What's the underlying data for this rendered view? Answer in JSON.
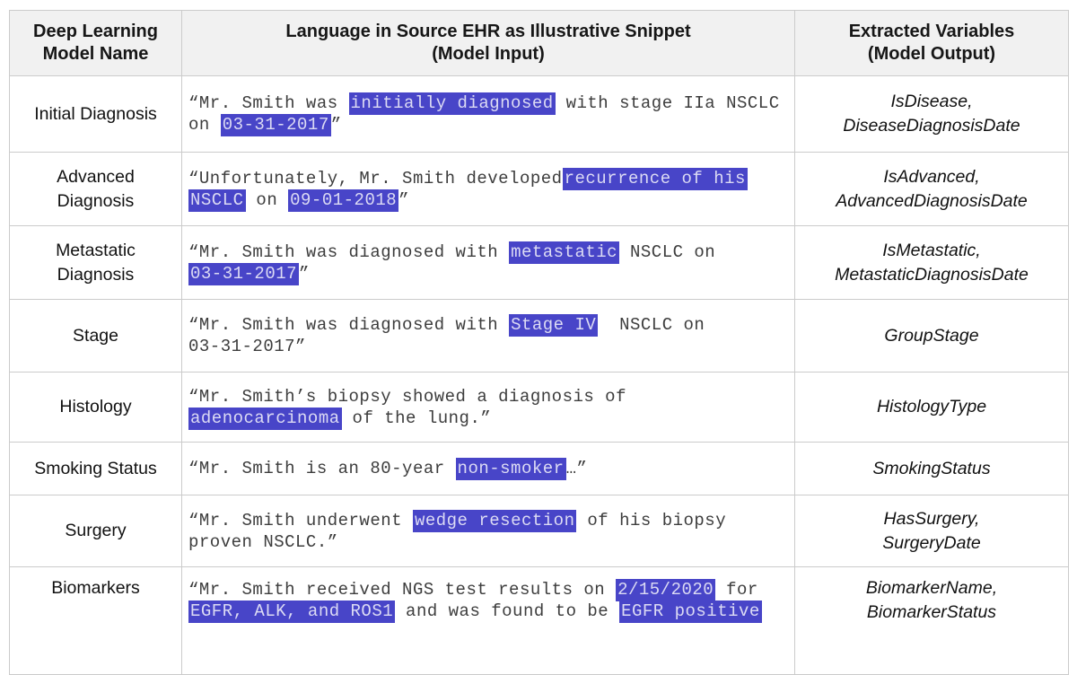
{
  "table": {
    "headers": {
      "col1": "Deep Learning\nModel Name",
      "col2": "Language in Source EHR as Illustrative Snippet\n(Model Input)",
      "col3": "Extracted Variables\n(Model Output)"
    },
    "rows": [
      {
        "model": "Initial Diagnosis",
        "snippet_lines": [
          [
            {
              "t": "“Mr. Smith was ",
              "h": false
            },
            {
              "t": "initially diagnosed",
              "h": true
            },
            {
              "t": " with stage IIa NSCLC",
              "h": false
            }
          ],
          [
            {
              "t": "on ",
              "h": false
            },
            {
              "t": "03-31-2017",
              "h": true
            },
            {
              "t": "”",
              "h": false
            }
          ]
        ],
        "variables": "IsDisease,\nDiseaseDiagnosisDate"
      },
      {
        "model": "Advanced\nDiagnosis",
        "snippet_lines": [
          [
            {
              "t": "“Unfortunately, Mr. Smith developed",
              "h": false
            },
            {
              "t": "recurrence of his",
              "h": true
            }
          ],
          [
            {
              "t": "NSCLC",
              "h": true
            },
            {
              "t": " on ",
              "h": false
            },
            {
              "t": "09-01-2018",
              "h": true
            },
            {
              "t": "”",
              "h": false
            }
          ]
        ],
        "variables": "IsAdvanced,\nAdvancedDiagnosisDate"
      },
      {
        "model": "Metastatic\nDiagnosis",
        "snippet_lines": [
          [
            {
              "t": "“Mr. Smith was diagnosed with ",
              "h": false
            },
            {
              "t": "metastatic",
              "h": true
            },
            {
              "t": " NSCLC on",
              "h": false
            }
          ],
          [
            {
              "t": "03-31-2017",
              "h": true
            },
            {
              "t": "”",
              "h": false
            }
          ]
        ],
        "variables": "IsMetastatic,\nMetastaticDiagnosisDate"
      },
      {
        "model": "Stage",
        "snippet_lines": [
          [
            {
              "t": "“Mr. Smith was diagnosed with ",
              "h": false
            },
            {
              "t": "Stage IV",
              "h": true
            },
            {
              "t": "  NSCLC on",
              "h": false
            }
          ],
          [
            {
              "t": "03-31-2017”",
              "h": false
            }
          ]
        ],
        "variables": "GroupStage"
      },
      {
        "model": "Histology",
        "snippet_lines": [
          [
            {
              "t": "“Mr. Smith’s biopsy showed a diagnosis of",
              "h": false
            }
          ],
          [
            {
              "t": "adenocarcinoma",
              "h": true
            },
            {
              "t": " of the lung.”",
              "h": false
            }
          ]
        ],
        "variables": "HistologyType"
      },
      {
        "model": "Smoking Status",
        "snippet_lines": [
          [
            {
              "t": "“Mr. Smith is an 80-year ",
              "h": false
            },
            {
              "t": "non-smoker",
              "h": true
            },
            {
              "t": "…”",
              "h": false
            }
          ]
        ],
        "variables": "SmokingStatus"
      },
      {
        "model": "Surgery",
        "snippet_lines": [
          [
            {
              "t": "“Mr. Smith underwent ",
              "h": false
            },
            {
              "t": "wedge resection",
              "h": true
            },
            {
              "t": " of his biopsy",
              "h": false
            }
          ],
          [
            {
              "t": "proven NSCLC.”",
              "h": false
            }
          ]
        ],
        "variables": "HasSurgery,\nSurgeryDate"
      },
      {
        "model": "Biomarkers",
        "snippet_lines": [
          [
            {
              "t": "“Mr. Smith received NGS test results on ",
              "h": false
            },
            {
              "t": "2/15/2020",
              "h": true
            },
            {
              "t": " for",
              "h": false
            }
          ],
          [
            {
              "t": "EGFR, ALK, and ROS1",
              "h": true
            },
            {
              "t": " and was found to be ",
              "h": false
            },
            {
              "t": "EGFR positive",
              "h": true
            }
          ]
        ],
        "variables": "BiomarkerName,\nBiomarkerStatus"
      }
    ]
  },
  "colors": {
    "highlight_bg": "#4845c8",
    "highlight_text": "#dcdbf4",
    "header_bg": "#f1f1f1",
    "border": "#cbcbcb"
  }
}
